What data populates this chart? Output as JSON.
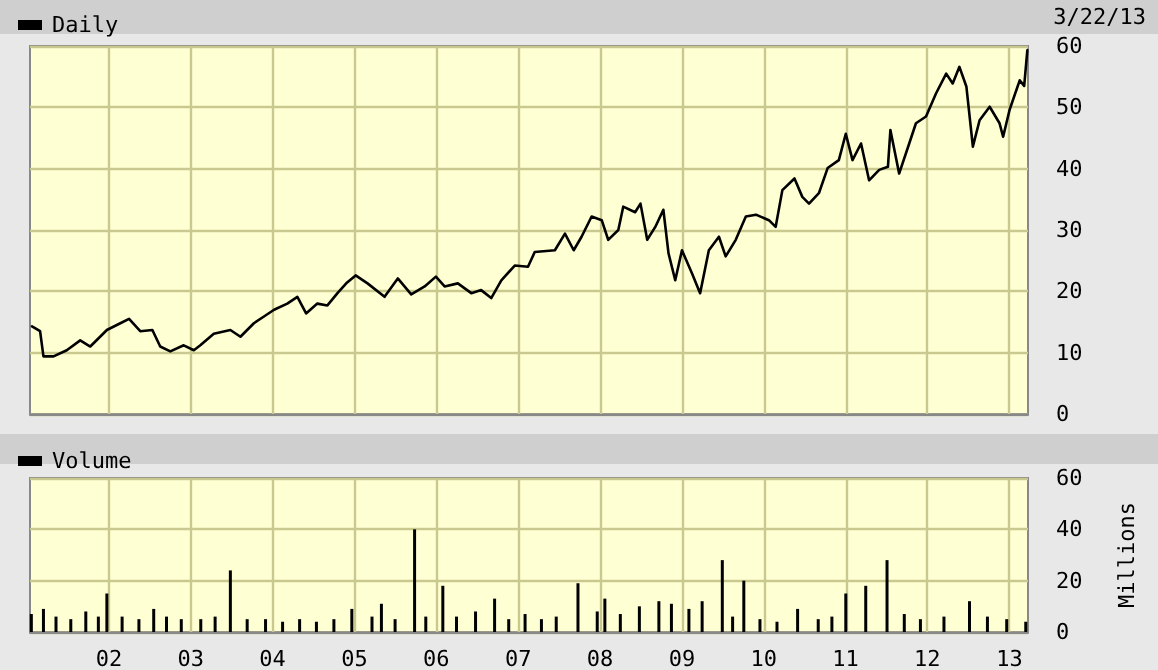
{
  "chart_data": [
    {
      "type": "line",
      "marker": "none",
      "legend": "top left",
      "grid": true,
      "tick_labels": "y",
      "annotations": [
        "3/22/13"
      ],
      "xlim": [
        "2001-01-14",
        "2013-03-25"
      ],
      "xticks": [
        {
          "value": "2002-01-01",
          "label": null
        },
        {
          "value": "2003-01-01",
          "label": null
        },
        {
          "value": "2004-01-01",
          "label": null
        },
        {
          "value": "2005-01-01",
          "label": null
        },
        {
          "value": "2006-01-01",
          "label": null
        },
        {
          "value": "2007-01-01",
          "label": null
        },
        {
          "value": "2008-01-01",
          "label": null
        },
        {
          "value": "2009-01-01",
          "label": null
        },
        {
          "value": "2010-01-01",
          "label": null
        },
        {
          "value": "2011-01-01",
          "label": null
        },
        {
          "value": "2012-01-01",
          "label": null
        },
        {
          "value": "2013-01-01",
          "label": null
        }
      ],
      "ylim": [
        0,
        60
      ],
      "yticks": [
        0,
        10,
        20,
        30,
        40,
        50,
        60
      ],
      "x": [
        "2001-01-23",
        "2001-02-28",
        "2001-03-15",
        "2001-04-29",
        "2001-06-27",
        "2001-08-26",
        "2001-10-10",
        "2001-12-23",
        "2002-02-21",
        "2002-04-01",
        "2002-05-21",
        "2002-07-14",
        "2002-08-18",
        "2002-10-02",
        "2002-12-01",
        "2003-01-15",
        "2003-02-13",
        "2003-04-14",
        "2003-06-27",
        "2003-08-11",
        "2003-10-10",
        "2003-11-24",
        "2004-01-08",
        "2004-03-07",
        "2004-04-21",
        "2004-05-30",
        "2004-07-19",
        "2004-09-02",
        "2004-10-17",
        "2004-11-25",
        "2005-01-06",
        "2005-02-28",
        "2005-05-15",
        "2005-07-13",
        "2005-09-11",
        "2005-11-10",
        "2005-12-30",
        "2006-02-07",
        "2006-04-07",
        "2006-06-06",
        "2006-07-20",
        "2006-09-03",
        "2006-10-18",
        "2006-12-17",
        "2007-02-14",
        "2007-03-16",
        "2007-06-14",
        "2007-07-29",
        "2007-09-06",
        "2007-10-11",
        "2007-11-25",
        "2008-01-09",
        "2008-02-07",
        "2008-03-23",
        "2008-04-14",
        "2008-06-06",
        "2008-06-30",
        "2008-07-30",
        "2008-09-04",
        "2008-10-10",
        "2008-11-02",
        "2008-12-02",
        "2009-01-01",
        "2009-02-15",
        "2009-03-23",
        "2009-05-01",
        "2009-06-15",
        "2009-07-15",
        "2009-08-29",
        "2009-10-13",
        "2009-11-27",
        "2010-01-24",
        "2010-02-23",
        "2010-03-25",
        "2010-05-18",
        "2010-06-22",
        "2010-07-22",
        "2010-09-04",
        "2010-10-13",
        "2010-12-02",
        "2011-01-02",
        "2011-02-01",
        "2011-03-11",
        "2011-04-16",
        "2011-05-31",
        "2011-07-09",
        "2011-07-20",
        "2011-08-28",
        "2011-10-12",
        "2011-11-11",
        "2011-12-26",
        "2012-02-09",
        "2012-03-25",
        "2012-04-23",
        "2012-05-23",
        "2012-06-23",
        "2012-07-22",
        "2012-08-21",
        "2012-10-05",
        "2012-11-18",
        "2012-12-04",
        "2013-01-02",
        "2013-02-16",
        "2013-03-08",
        "2013-03-22"
      ],
      "series": [
        {
          "name": "Daily",
          "color": "#000000",
          "values": [
            14.3,
            13.5,
            9.4,
            9.4,
            10.4,
            12,
            11,
            13.7,
            14.8,
            15.5,
            13.5,
            13.7,
            11,
            10.2,
            11.2,
            10.4,
            11.2,
            13.1,
            13.7,
            12.6,
            14.8,
            15.9,
            17,
            18,
            19.1,
            16.4,
            18,
            17.7,
            19.7,
            21.3,
            22.6,
            21.3,
            19.1,
            22.1,
            19.5,
            20.8,
            22.4,
            20.8,
            21.3,
            19.7,
            20.2,
            18.9,
            21.8,
            24.2,
            24,
            26.4,
            26.7,
            29.4,
            26.7,
            28.9,
            32.2,
            31.6,
            28.4,
            30,
            33.8,
            32.9,
            34.3,
            28.4,
            30.5,
            33.3,
            26.2,
            21.8,
            26.7,
            22.9,
            19.7,
            26.7,
            28.9,
            25.7,
            28.4,
            32.2,
            32.5,
            31.6,
            30.5,
            36.5,
            38.4,
            35.4,
            34.3,
            36,
            40.1,
            41.4,
            45.7,
            41.4,
            44.1,
            38.1,
            39.8,
            40.3,
            46.3,
            39.2,
            44.1,
            47.4,
            48.5,
            52.3,
            55.5,
            53.9,
            56.6,
            53.4,
            43.6,
            47.9,
            50.1,
            47.4,
            45.2,
            49.6,
            54.4,
            53.5,
            59.3
          ]
        }
      ]
    },
    {
      "type": "bar",
      "legend": "top left",
      "grid": true,
      "ylabel": "Millions",
      "xlim": [
        "2001-01-14",
        "2013-03-25"
      ],
      "xticks": [
        {
          "value": "2002-01-01",
          "label": "02"
        },
        {
          "value": "2003-01-01",
          "label": "03"
        },
        {
          "value": "2004-01-01",
          "label": "04"
        },
        {
          "value": "2005-01-01",
          "label": "05"
        },
        {
          "value": "2006-01-01",
          "label": "06"
        },
        {
          "value": "2007-01-01",
          "label": "07"
        },
        {
          "value": "2008-01-01",
          "label": "08"
        },
        {
          "value": "2009-01-01",
          "label": "09"
        },
        {
          "value": "2010-01-01",
          "label": "10"
        },
        {
          "value": "2011-01-01",
          "label": "11"
        },
        {
          "value": "2012-01-01",
          "label": "12"
        },
        {
          "value": "2013-01-01",
          "label": "13"
        }
      ],
      "ylim": [
        0,
        60
      ],
      "yticks": [
        0,
        20,
        40,
        60
      ],
      "x": [
        "2001-01-20",
        "2001-03-15",
        "2001-05-10",
        "2001-07-15",
        "2001-09-20",
        "2001-11-15",
        "2001-12-23",
        "2002-03-01",
        "2002-05-15",
        "2002-07-20",
        "2002-09-15",
        "2002-11-20",
        "2003-02-15",
        "2003-04-20",
        "2003-06-27",
        "2003-09-10",
        "2003-12-01",
        "2004-02-15",
        "2004-05-01",
        "2004-07-15",
        "2004-10-01",
        "2004-12-20",
        "2005-03-20",
        "2005-05-01",
        "2005-07-01",
        "2005-09-26",
        "2005-11-15",
        "2006-01-30",
        "2006-04-01",
        "2006-06-25",
        "2006-09-18",
        "2006-11-20",
        "2007-02-01",
        "2007-04-15",
        "2007-06-20",
        "2007-09-25",
        "2007-12-20",
        "2008-01-23",
        "2008-04-01",
        "2008-06-25",
        "2008-09-20",
        "2008-11-15",
        "2009-02-01",
        "2009-04-01",
        "2009-06-30",
        "2009-08-15",
        "2009-10-04",
        "2009-12-15",
        "2010-03-01",
        "2010-06-01",
        "2010-09-01",
        "2010-11-01",
        "2011-01-02",
        "2011-04-01",
        "2011-07-05",
        "2011-09-20",
        "2011-12-01",
        "2012-03-15",
        "2012-07-07",
        "2012-09-25",
        "2012-12-20",
        "2013-03-15"
      ],
      "series": [
        {
          "name": "Volume",
          "color": "#000000",
          "values": [
            7,
            9,
            6,
            5,
            8,
            6,
            15,
            6,
            5,
            9,
            6,
            5,
            5,
            6,
            24,
            5,
            5,
            4,
            5,
            4,
            5,
            9,
            6,
            11,
            5,
            40,
            6,
            18,
            6,
            8,
            13,
            5,
            7,
            5,
            6,
            19,
            8,
            13,
            7,
            10,
            12,
            11,
            9,
            12,
            28,
            6,
            20,
            5,
            4,
            9,
            5,
            6,
            15,
            18,
            28,
            7,
            5,
            6,
            12,
            6,
            5,
            4
          ]
        }
      ]
    }
  ]
}
